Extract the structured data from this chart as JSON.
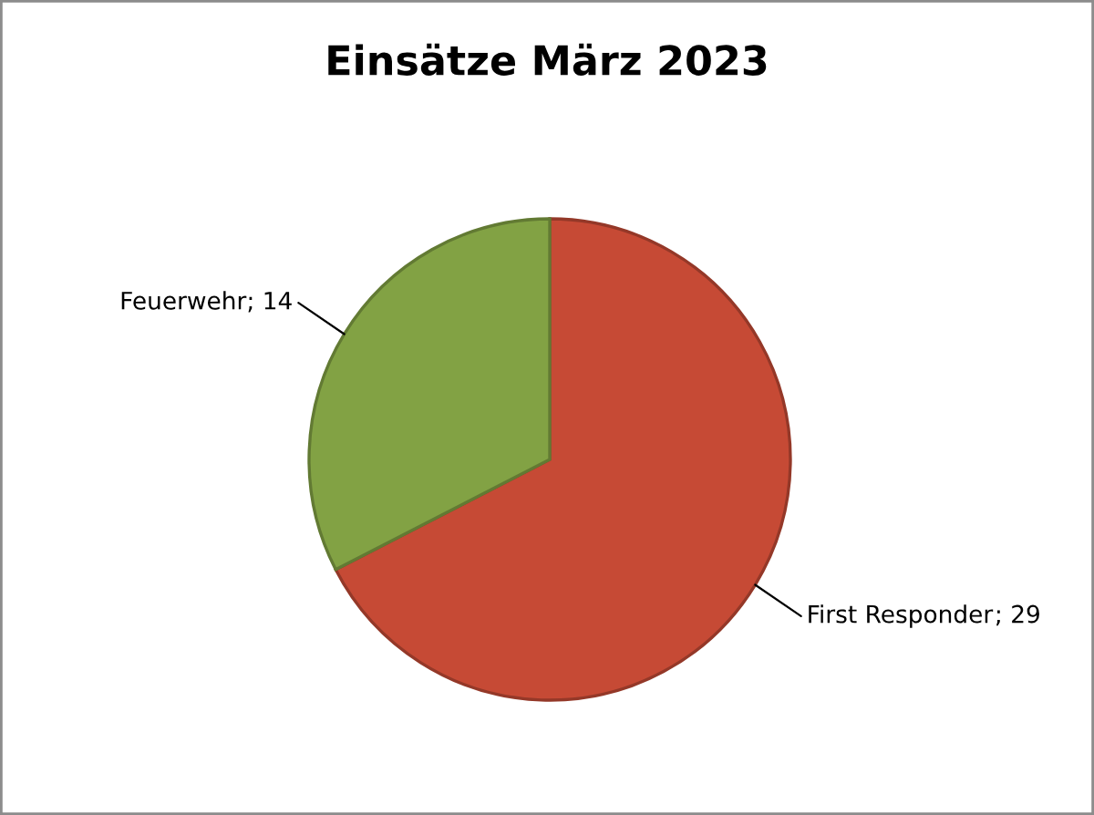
{
  "chart_data": {
    "type": "pie",
    "title": "Einsätze März 2023",
    "categories": [
      "First Responder",
      "Feuerwehr"
    ],
    "values": [
      29,
      14
    ],
    "colors": [
      "#c64a35",
      "#82a244"
    ],
    "value_labels": [
      "; 29",
      "; 14"
    ]
  }
}
